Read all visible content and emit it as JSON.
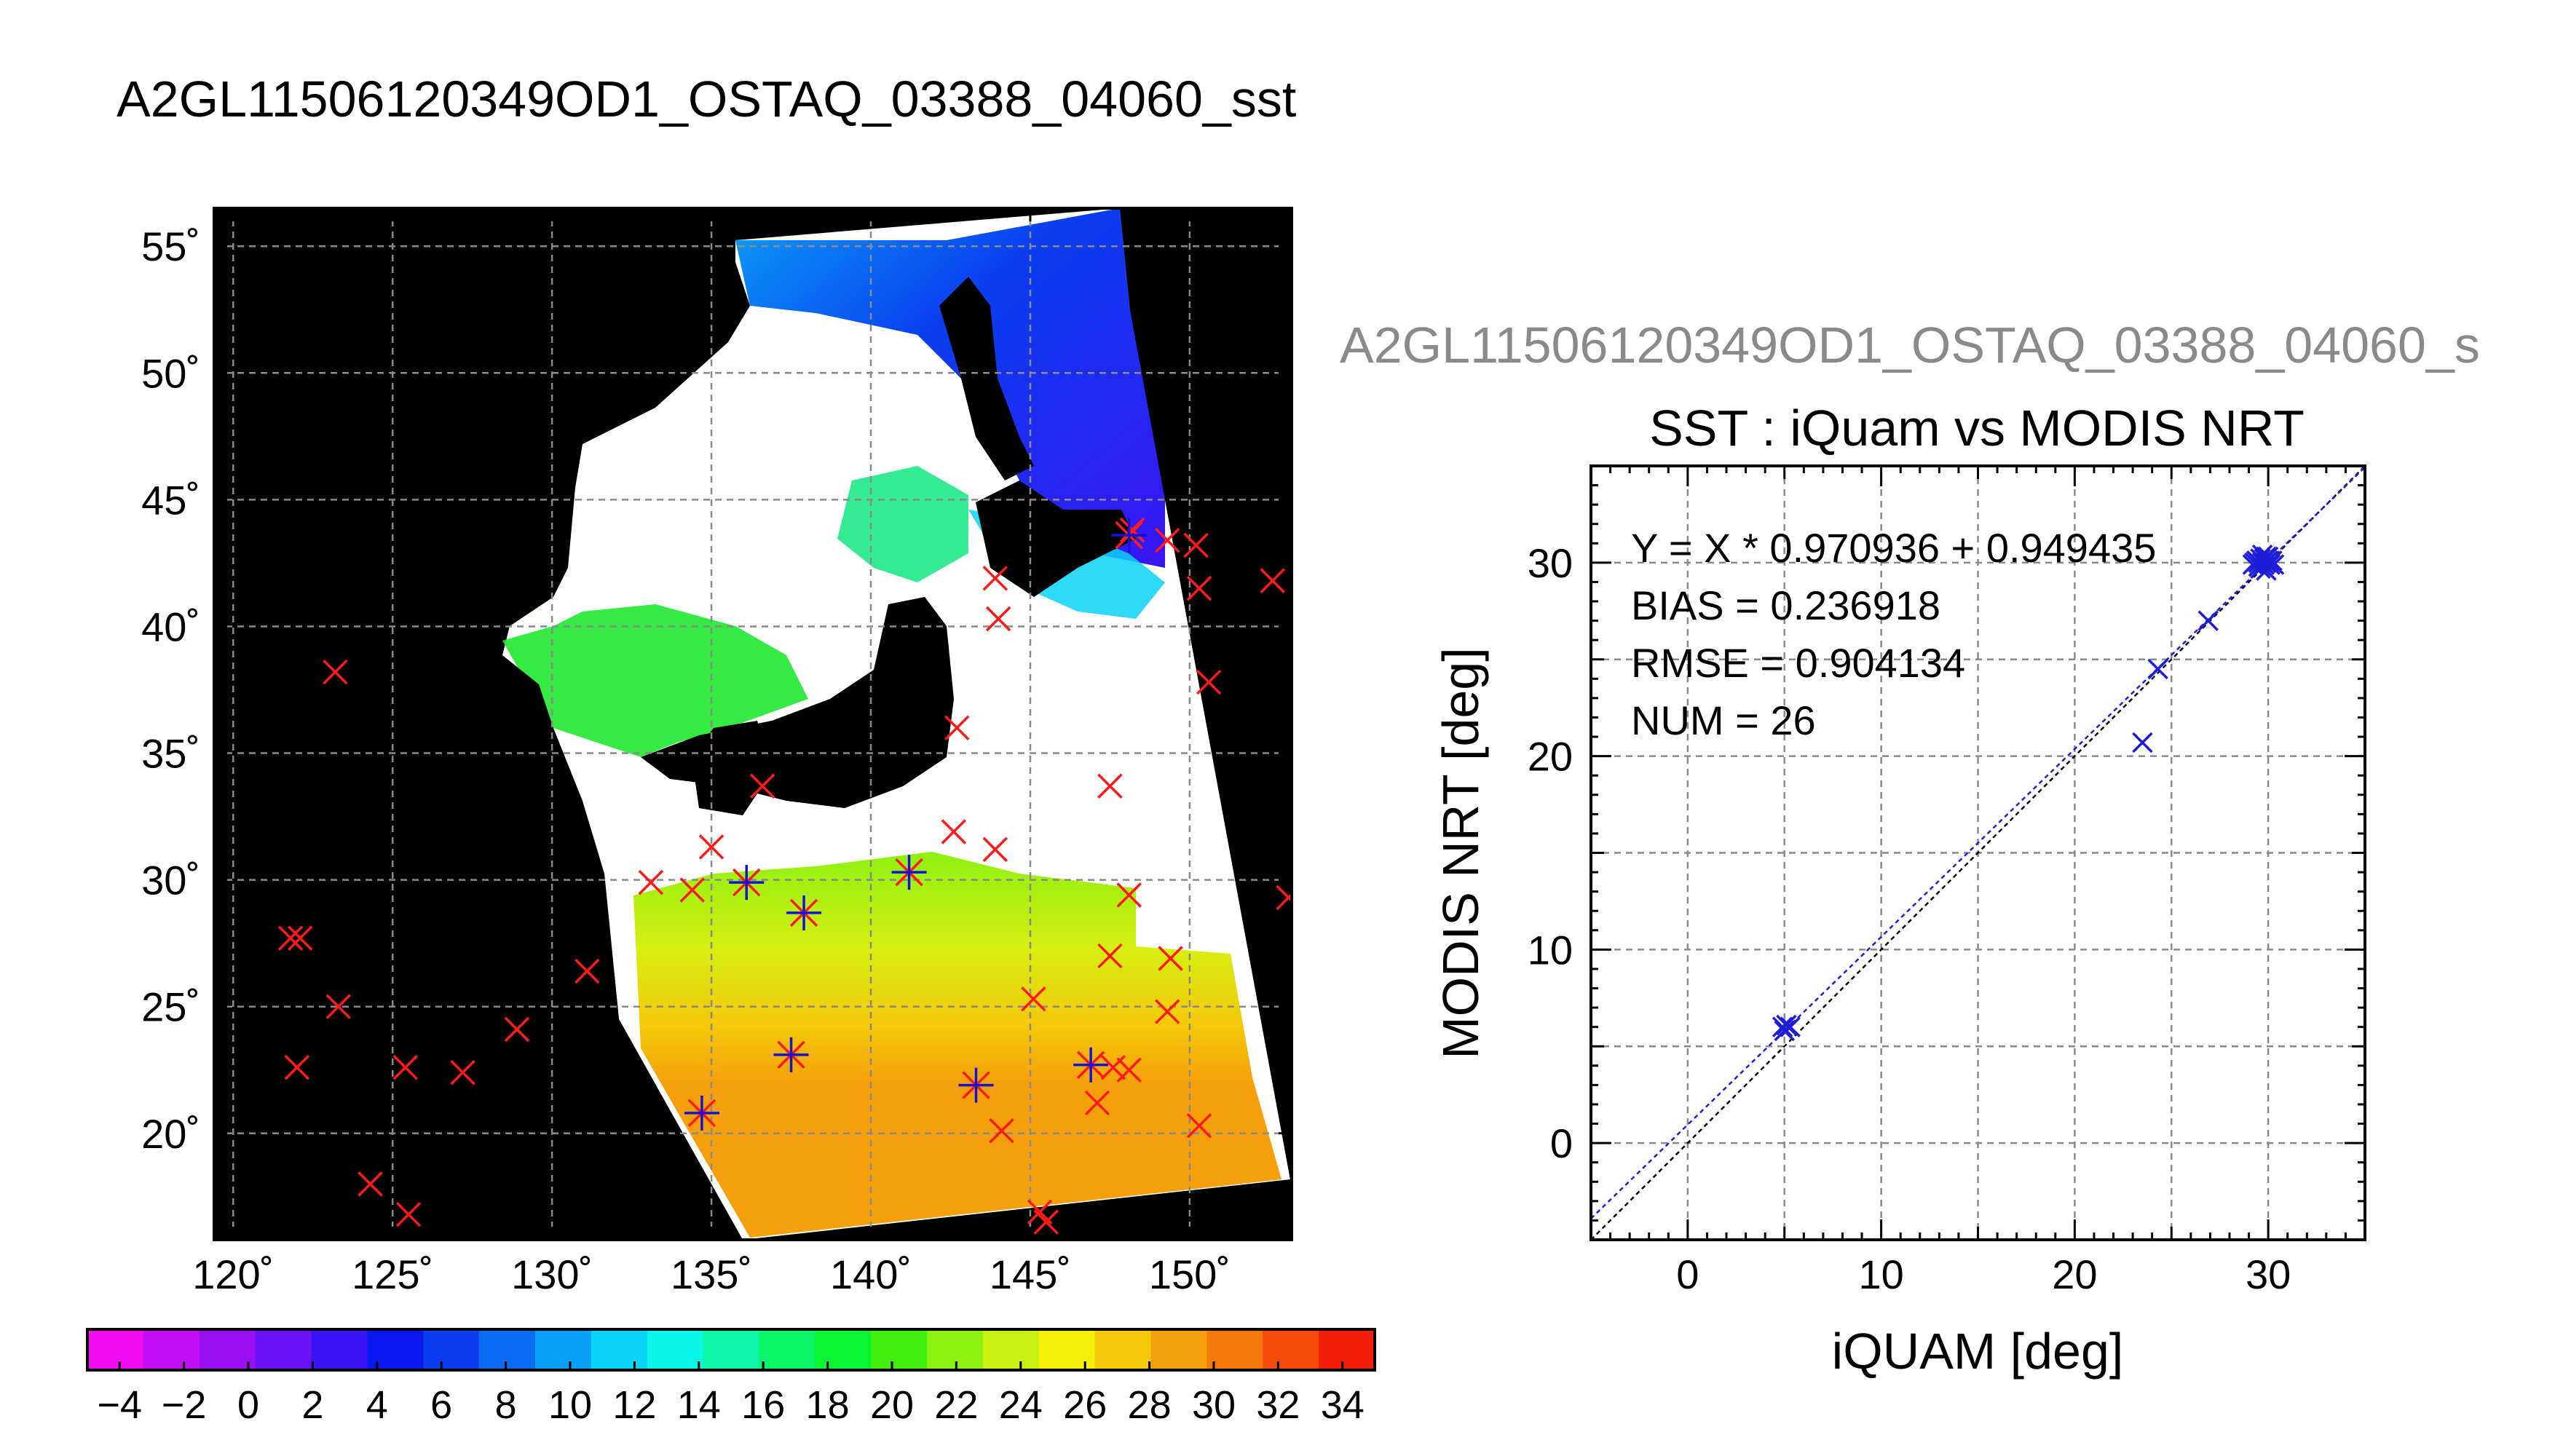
{
  "main_title": "A2GL11506120349OD1_OSTAQ_03388_04060_sst",
  "scatter_filename": "A2GL11506120349OD1_OSTAQ_03388_04060_s",
  "colors": {
    "land": "#000000",
    "cloud": "#ffffff",
    "marker_red": "#ff1a1a",
    "marker_blue": "#1414d2",
    "scatter_blue": "#1e1ed8",
    "grid": "#777777"
  },
  "chart_data": [
    {
      "type": "heatmap",
      "name": "map",
      "x_ticks": [
        "120˚",
        "125˚",
        "130˚",
        "135˚",
        "140˚",
        "145˚",
        "150˚"
      ],
      "y_ticks": [
        "55˚",
        "50˚",
        "45˚",
        "40˚",
        "35˚",
        "30˚",
        "25˚",
        "20˚"
      ],
      "xlim": [
        119.4,
        153.2
      ],
      "ylim": [
        15.8,
        56.5
      ],
      "grid": true,
      "colorbar": {
        "min": -5,
        "max": 35,
        "tick_labels": [
          "−4",
          "−2",
          "0",
          "2",
          "4",
          "6",
          "8",
          "10",
          "12",
          "14",
          "16",
          "18",
          "20",
          "22",
          "24",
          "26",
          "28",
          "30",
          "32",
          "34"
        ],
        "colors": [
          "#f20cf2",
          "#c40ef5",
          "#9a10f5",
          "#6a12f5",
          "#3a14f5",
          "#0a18f0",
          "#0a3ef0",
          "#0a6cf5",
          "#0aa0f8",
          "#0ad4f8",
          "#0af5e8",
          "#0af5a8",
          "#0af568",
          "#0af530",
          "#40f010",
          "#8cf010",
          "#c8f010",
          "#f5f00a",
          "#f5c80a",
          "#f5a00a",
          "#f57a0a",
          "#f54a0a",
          "#f51e0a"
        ]
      },
      "buoys_red": [
        [
          123.2,
          38.2
        ],
        [
          121.8,
          27.7
        ],
        [
          122.1,
          27.7
        ],
        [
          123.3,
          25.0
        ],
        [
          122.0,
          22.6
        ],
        [
          125.4,
          22.6
        ],
        [
          127.2,
          22.4
        ],
        [
          128.9,
          24.1
        ],
        [
          124.3,
          18.0
        ],
        [
          125.5,
          16.8
        ],
        [
          131.1,
          26.4
        ],
        [
          133.1,
          29.9
        ],
        [
          134.4,
          29.6
        ],
        [
          135.0,
          31.3
        ],
        [
          136.6,
          33.7
        ],
        [
          142.6,
          31.9
        ],
        [
          143.9,
          31.2
        ],
        [
          144.0,
          40.3
        ],
        [
          143.9,
          41.9
        ],
        [
          142.7,
          36.0
        ],
        [
          147.5,
          33.7
        ],
        [
          148.1,
          29.4
        ],
        [
          147.5,
          27.0
        ],
        [
          149.4,
          26.9
        ],
        [
          149.3,
          24.8
        ],
        [
          145.1,
          25.3
        ],
        [
          148.1,
          22.5
        ],
        [
          147.1,
          21.2
        ],
        [
          147.6,
          22.6
        ],
        [
          144.1,
          20.1
        ],
        [
          150.3,
          20.3
        ],
        [
          145.3,
          16.9
        ],
        [
          145.5,
          16.5
        ],
        [
          148.2,
          43.8
        ],
        [
          149.3,
          43.4
        ],
        [
          150.2,
          43.2
        ],
        [
          150.3,
          41.5
        ],
        [
          150.6,
          37.8
        ],
        [
          152.6,
          41.8
        ],
        [
          153.1,
          29.3
        ]
      ],
      "buoys_colocated": [
        [
          134.7,
          20.8
        ],
        [
          137.5,
          23.1
        ],
        [
          143.3,
          21.9
        ],
        [
          146.9,
          22.7
        ],
        [
          136.1,
          29.9
        ],
        [
          137.9,
          28.7
        ],
        [
          141.2,
          30.3
        ],
        [
          148.1,
          43.6
        ]
      ]
    },
    {
      "type": "scatter",
      "name": "scatter",
      "title": "SST : iQuam vs MODIS NRT",
      "xlabel": "iQUAM [deg]",
      "ylabel": "MODIS NRT [deg]",
      "xlim": [
        -5,
        35
      ],
      "ylim": [
        -5,
        35
      ],
      "x_ticks": [
        0,
        10,
        20,
        30
      ],
      "y_ticks": [
        0,
        10,
        20,
        30
      ],
      "grid": true,
      "regression": {
        "slope": 0.970936,
        "intercept": 0.949435
      },
      "stats": [
        "Y = X * 0.970936 + 0.949435",
        "BIAS = 0.236918",
        "RMSE = 0.904134",
        "NUM = 26"
      ],
      "points": [
        [
          4.9,
          6.0
        ],
        [
          5.1,
          6.1
        ],
        [
          5.0,
          5.8
        ],
        [
          5.3,
          6.0
        ],
        [
          23.5,
          20.7
        ],
        [
          24.3,
          24.5
        ],
        [
          26.9,
          27.0
        ],
        [
          29.2,
          29.9
        ],
        [
          29.4,
          30.1
        ],
        [
          29.5,
          29.8
        ],
        [
          29.6,
          30.2
        ],
        [
          29.7,
          30.0
        ],
        [
          29.8,
          29.9
        ],
        [
          29.9,
          30.3
        ],
        [
          30.0,
          30.1
        ],
        [
          29.8,
          30.2
        ],
        [
          30.1,
          29.9
        ],
        [
          29.6,
          29.7
        ],
        [
          29.9,
          30.0
        ],
        [
          30.2,
          30.1
        ],
        [
          29.3,
          30.0
        ],
        [
          30.0,
          30.3
        ],
        [
          29.7,
          30.4
        ],
        [
          29.5,
          30.0
        ],
        [
          30.3,
          29.9
        ],
        [
          29.9,
          29.6
        ]
      ]
    }
  ]
}
